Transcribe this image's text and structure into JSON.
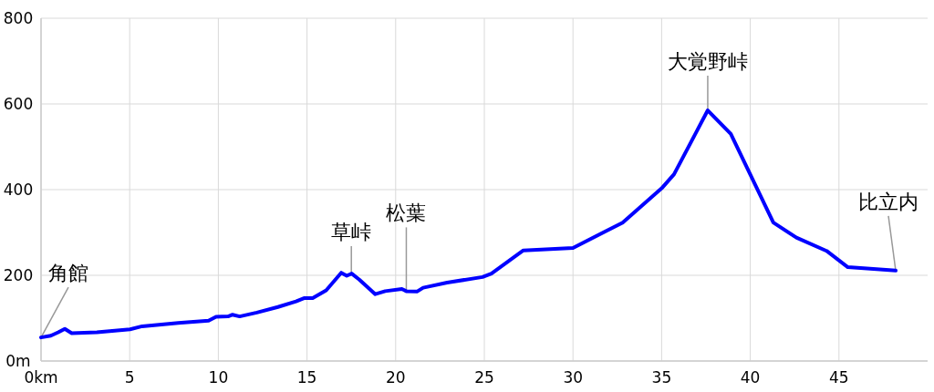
{
  "chart_data": {
    "type": "line",
    "color": "#0000ff",
    "grid": true,
    "marker": "none",
    "line_style": "solid",
    "xlim": [
      0,
      50
    ],
    "ylim": [
      0,
      800
    ],
    "xticks": [
      {
        "value": 0,
        "label": "0km"
      },
      5,
      10,
      15,
      20,
      25,
      30,
      35,
      40,
      45
    ],
    "yticks": [
      {
        "value": 0,
        "label": "0m"
      },
      200,
      400,
      600,
      800
    ],
    "x": [
      0,
      0.55,
      0.97,
      1.34,
      1.73,
      3.15,
      5.02,
      5.7,
      7.74,
      9.45,
      9.87,
      10.55,
      10.8,
      11.2,
      12.17,
      13.36,
      14.38,
      14.86,
      15.32,
      16.08,
      16.93,
      17.24,
      17.52,
      17.95,
      18.85,
      19.41,
      20.35,
      20.6,
      21.2,
      21.55,
      22.9,
      24.9,
      25.4,
      27.2,
      30.0,
      32.8,
      35.0,
      35.7,
      37.6,
      38.9,
      41.3,
      42.6,
      44.3,
      45.5,
      48.2
    ],
    "values": [
      55,
      59,
      67,
      75,
      65,
      67,
      74,
      81,
      89,
      94,
      103,
      104,
      108,
      104,
      113,
      126,
      139,
      147,
      147,
      165,
      206,
      199,
      204,
      190,
      156,
      163,
      168,
      163,
      162,
      171,
      183,
      196,
      204,
      258,
      264,
      323,
      403,
      436,
      585,
      530,
      323,
      288,
      257,
      219,
      211
    ],
    "annotations": [
      {
        "text": "角館",
        "x": 0,
        "y": 55
      },
      {
        "text": "草峠",
        "x": 17.5,
        "y": 204
      },
      {
        "text": "松葉",
        "x": 20.6,
        "y": 163
      },
      {
        "text": "大覚野峠",
        "x": 37.6,
        "y": 585
      },
      {
        "text": "比立内",
        "x": 48.2,
        "y": 211
      }
    ]
  }
}
